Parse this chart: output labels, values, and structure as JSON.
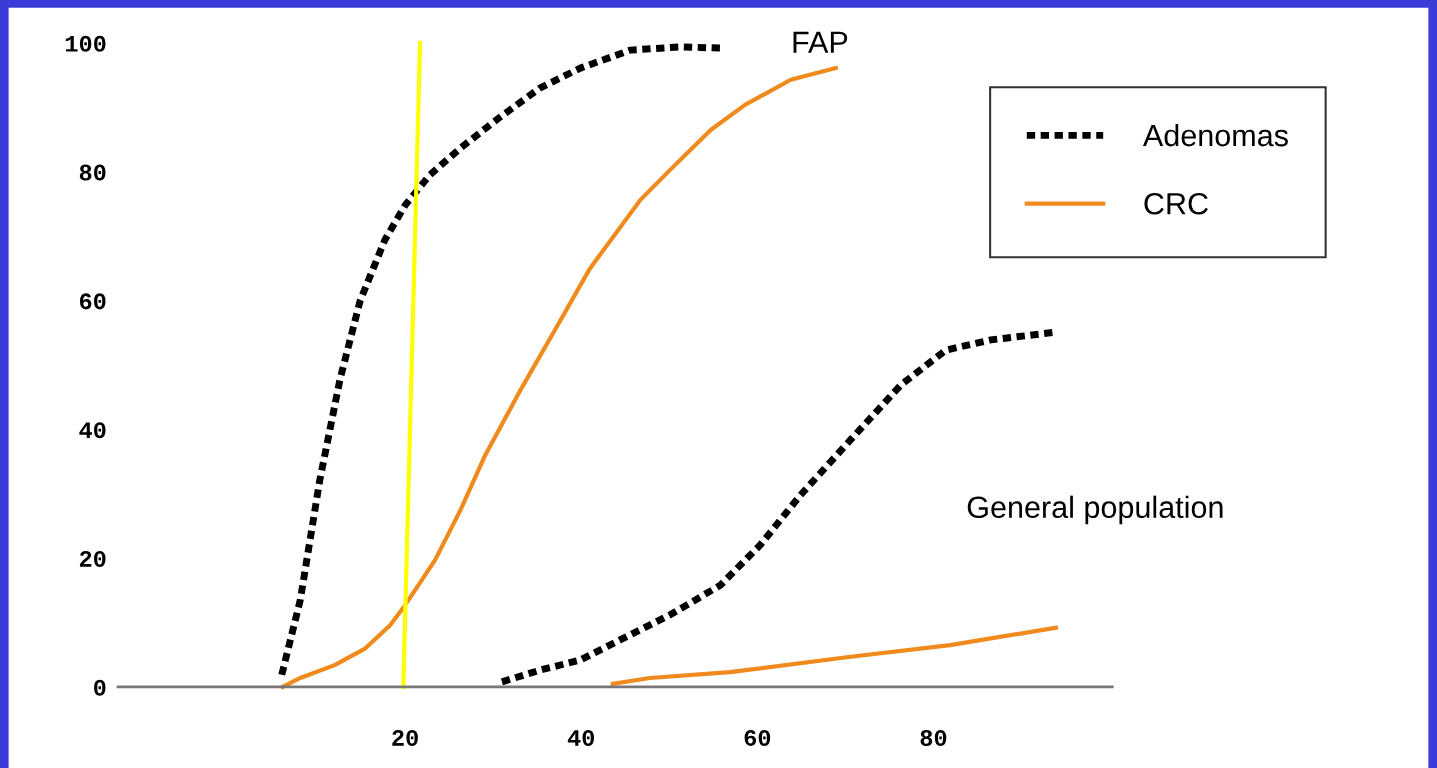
{
  "chart_data": {
    "type": "line",
    "xlim": [
      -12.6,
      100.3
    ],
    "ylim": [
      0,
      100
    ],
    "xticks": [
      20,
      40,
      60,
      80
    ],
    "yticks": [
      0,
      20,
      40,
      60,
      80,
      100
    ],
    "grid": false,
    "legend": "top right",
    "marker": "none",
    "series": [
      {
        "name": "Adenomas",
        "color": "#000000",
        "line_style": "dotted",
        "x": [
          6.0,
          8.1,
          10.3,
          12.6,
          14.9,
          17.7,
          20,
          22.8,
          26.3,
          30.8,
          35.3,
          39.9,
          45.6,
          51.3,
          56
        ],
        "values": [
          1.9,
          13.5,
          32,
          47.7,
          60,
          69.4,
          74.8,
          79.5,
          83.7,
          88.5,
          93,
          96.1,
          98.9,
          99.4,
          99.2
        ]
      },
      {
        "name": "CRC",
        "color": "#f08a1c",
        "line_style": "solid",
        "x": [
          6.1,
          8.1,
          12,
          15.5,
          18.3,
          20,
          23.4,
          26.3,
          29.1,
          33.1,
          37,
          41,
          46.7,
          50.1,
          54.7,
          58.6,
          63.8,
          68.9
        ],
        "values": [
          0,
          1.4,
          3.4,
          6,
          9.6,
          12.7,
          19.7,
          27.5,
          36,
          46.1,
          55.4,
          65,
          75.6,
          80.3,
          86.5,
          90.4,
          94.3,
          96.1
        ]
      },
      {
        "color": "#000000",
        "line_style": "dotted",
        "x": [
          31,
          35.3,
          39.9,
          44.4,
          50.1,
          55.8,
          60.3,
          64.9,
          70.6,
          76.3,
          81.4,
          86.5,
          93.9
        ],
        "values": [
          0.8,
          2.6,
          4.2,
          7.3,
          11.2,
          15.8,
          22,
          29.8,
          38.4,
          46.9,
          52.3,
          53.9,
          55.1
        ]
      },
      {
        "color": "#f08a1c",
        "line_style": "solid",
        "x": [
          43.6,
          47.8,
          56.9,
          70.6,
          81.9,
          93.9
        ],
        "values": [
          0.5,
          1.4,
          2.3,
          4.7,
          6.5,
          9.2
        ]
      },
      {
        "color": "#ffff00",
        "line_style": "solid",
        "x": [
          19.8,
          21.7
        ],
        "values": [
          0,
          100
        ]
      }
    ],
    "annotations": [
      "FAP",
      "General population"
    ]
  }
}
